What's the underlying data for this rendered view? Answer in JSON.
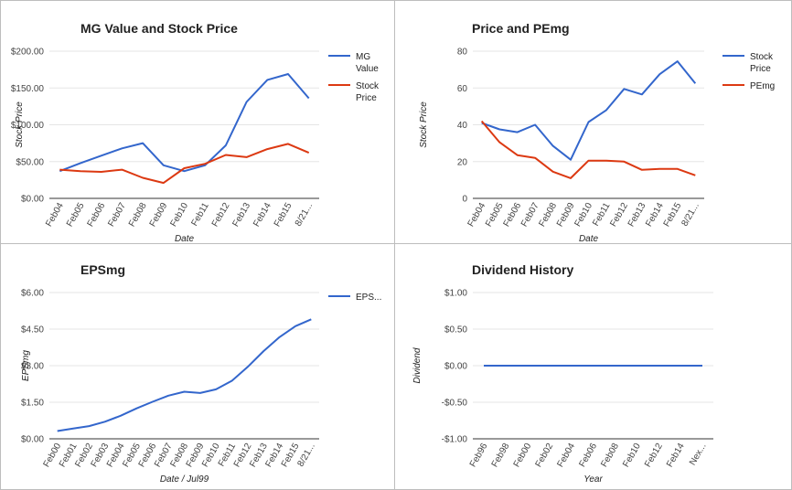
{
  "chart_data": [
    {
      "type": "line",
      "title": "MG Value and Stock Price",
      "xlabel": "Date",
      "ylabel": "Stock Price",
      "categories": [
        "Feb04",
        "Feb05",
        "Feb06",
        "Feb07",
        "Feb08",
        "Feb09",
        "Feb10",
        "Feb11",
        "Feb12",
        "Feb13",
        "Feb14",
        "Feb15",
        "8/21..."
      ],
      "ylim": [
        0,
        200
      ],
      "yticks": [
        "$0.00",
        "$50.00",
        "$100.00",
        "$150.00",
        "$200.00"
      ],
      "ytick_values": [
        0,
        50,
        100,
        150,
        200
      ],
      "grid": true,
      "legend": "right",
      "series": [
        {
          "name": "MG Value",
          "legend_lines": [
            "MG",
            "Value"
          ],
          "color": "#3366cc",
          "values": [
            37,
            48,
            58,
            68,
            75,
            45,
            37,
            45,
            72,
            131,
            161,
            169,
            136
          ]
        },
        {
          "name": "Stock Price",
          "legend_lines": [
            "Stock",
            "Price"
          ],
          "color": "#dc3912",
          "values": [
            39,
            37,
            36,
            39,
            28,
            21,
            41,
            47,
            59,
            56,
            67,
            74,
            62
          ]
        }
      ]
    },
    {
      "type": "line",
      "title": "Price and PEmg",
      "xlabel": "Date",
      "ylabel": "Stock Price",
      "categories": [
        "Feb04",
        "Feb05",
        "Feb06",
        "Feb07",
        "Feb08",
        "Feb09",
        "Feb10",
        "Feb11",
        "Feb12",
        "Feb13",
        "Feb14",
        "Feb15",
        "8/21..."
      ],
      "ylim": [
        0,
        80
      ],
      "yticks": [
        "0",
        "20",
        "40",
        "60",
        "80"
      ],
      "ytick_values": [
        0,
        20,
        40,
        60,
        80
      ],
      "grid": true,
      "legend": "right",
      "series": [
        {
          "name": "Stock Price",
          "legend_lines": [
            "Stock",
            "Price"
          ],
          "color": "#3366cc",
          "values": [
            41,
            37.5,
            36,
            40,
            28.5,
            21,
            41.5,
            48,
            59.5,
            56.5,
            67.5,
            74.5,
            62.5
          ]
        },
        {
          "name": "PEmg",
          "legend_lines": [
            "PEmg"
          ],
          "color": "#dc3912",
          "values": [
            42,
            30.5,
            23.5,
            22,
            14.5,
            11,
            20.5,
            20.5,
            20,
            15.5,
            16,
            16,
            12.5
          ]
        }
      ]
    },
    {
      "type": "line",
      "title": "EPSmg",
      "xlabel": "Date / Jul99",
      "ylabel": "EPSmg",
      "categories": [
        "Feb00",
        "Feb01",
        "Feb02",
        "Feb03",
        "Feb04",
        "Feb05",
        "Feb06",
        "Feb07",
        "Feb08",
        "Feb09",
        "Feb10",
        "Feb11",
        "Feb12",
        "Feb13",
        "Feb14",
        "Feb15",
        "8/21..."
      ],
      "ylim": [
        0,
        6
      ],
      "yticks": [
        "$0.00",
        "$1.50",
        "$3.00",
        "$4.50",
        "$6.00"
      ],
      "ytick_values": [
        0,
        1.5,
        3,
        4.5,
        6
      ],
      "grid": true,
      "legend": "right",
      "series": [
        {
          "name": "EPS...",
          "legend_lines": [
            "EPS..."
          ],
          "color": "#3366cc",
          "values": [
            0.32,
            0.42,
            0.52,
            0.7,
            0.95,
            1.25,
            1.52,
            1.77,
            1.93,
            1.88,
            2.03,
            2.38,
            2.95,
            3.6,
            4.17,
            4.62,
            4.9
          ]
        }
      ]
    },
    {
      "type": "line",
      "title": "Dividend History",
      "xlabel": "Year",
      "ylabel": "Dividend",
      "categories": [
        "Feb96",
        "Feb98",
        "Feb00",
        "Feb02",
        "Feb04",
        "Feb06",
        "Feb08",
        "Feb10",
        "Feb12",
        "Feb14",
        "Nex..."
      ],
      "ylim": [
        -1,
        1
      ],
      "yticks": [
        "-$1.00",
        "-$0.50",
        "$0.00",
        "$0.50",
        "$1.00"
      ],
      "ytick_values": [
        -1,
        -0.5,
        0,
        0.5,
        1
      ],
      "grid": true,
      "legend": "none",
      "series": [
        {
          "color": "#3366cc",
          "values": [
            0,
            0,
            0,
            0,
            0,
            0,
            0,
            0,
            0,
            0,
            0
          ]
        }
      ]
    }
  ]
}
